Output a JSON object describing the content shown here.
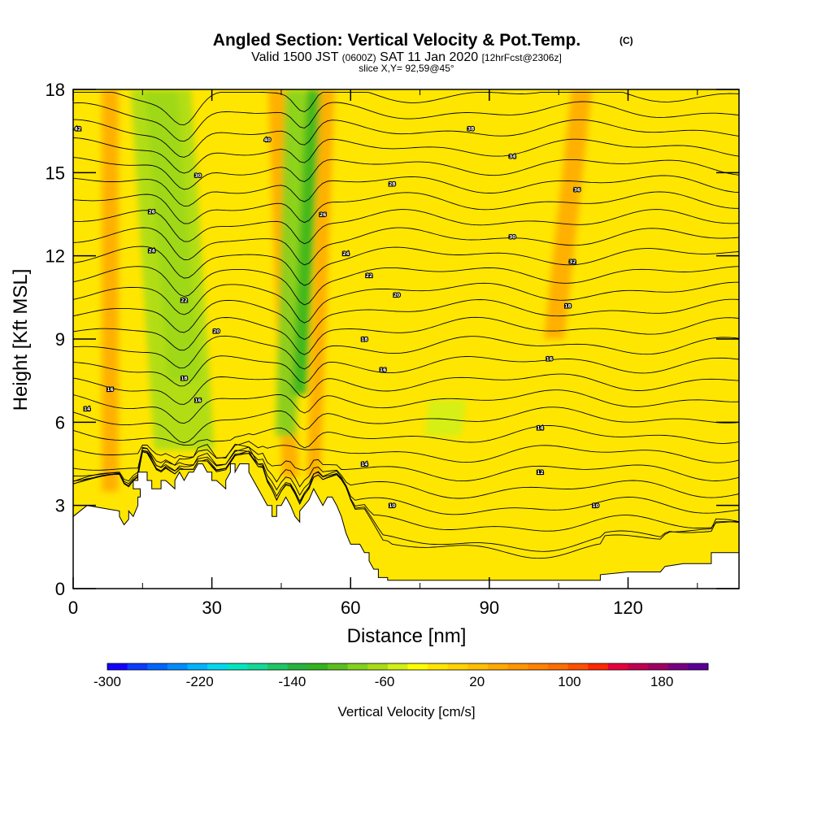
{
  "chart_data": {
    "type": "heatmap",
    "title": "Angled Section: Vertical Velocity & Pot.Temp.",
    "title_tag": "(C)",
    "subtitle_prefix": "Valid 1500 JST",
    "subtitle_small": "(0600Z)",
    "subtitle_main": "SAT 11 Jan 2020",
    "subtitle_fcst": "[12hrFcst@2306z]",
    "slice_info": "slice X,Y= 92,59@45°",
    "xlabel": "Distance [nm]",
    "ylabel": "Height [Kft MSL]",
    "xlim": [
      0,
      144
    ],
    "ylim": [
      0,
      18
    ],
    "x_ticks": [
      "0",
      "30",
      "60",
      "90",
      "120"
    ],
    "x_tick_values": [
      0,
      30,
      60,
      90,
      120
    ],
    "y_ticks": [
      "0",
      "3",
      "6",
      "9",
      "12",
      "15",
      "18"
    ],
    "y_tick_values": [
      0,
      3,
      6,
      9,
      12,
      15,
      18
    ],
    "background_velocity": 20,
    "velocity_bands": [
      {
        "x_top": 8,
        "x_bottom": 8,
        "half_width": 1.8,
        "value": 80,
        "y_from": 3.5,
        "y_to": 18
      },
      {
        "x_top": 19,
        "x_bottom": 24,
        "half_width": 3.5,
        "value": -100,
        "y_from": 7.5,
        "y_to": 18
      },
      {
        "x_top": 19,
        "x_bottom": 24,
        "half_width": 6.5,
        "value": -40,
        "y_from": 5,
        "y_to": 18
      },
      {
        "x_top": 44,
        "x_bottom": 47,
        "half_width": 1.8,
        "value": 80,
        "y_from": 4,
        "y_to": 18
      },
      {
        "x_top": 48,
        "x_bottom": 46,
        "half_width": 2.2,
        "value": -60,
        "y_from": 5.5,
        "y_to": 18
      },
      {
        "x_top": 52,
        "x_bottom": 49,
        "half_width": 1.6,
        "value": -100,
        "y_from": 7,
        "y_to": 18
      },
      {
        "x_top": 55,
        "x_bottom": 52,
        "half_width": 1.5,
        "value": 80,
        "y_from": 4,
        "y_to": 18
      },
      {
        "x_top": 110,
        "x_bottom": 104,
        "half_width": 2.2,
        "value": 90,
        "y_from": 9,
        "y_to": 18
      },
      {
        "x_top": 81,
        "x_bottom": 80,
        "half_width": 4,
        "value": -20,
        "y_from": 5.5,
        "y_to": 6.8
      }
    ],
    "terrain": {
      "x": [
        0,
        3,
        10,
        10,
        11,
        12,
        12,
        13,
        14,
        14,
        14.5,
        14.5,
        13,
        13,
        14,
        14,
        15,
        16,
        16,
        17,
        17,
        18,
        19,
        19,
        20,
        22,
        22,
        23,
        24,
        25,
        26,
        27,
        28,
        29,
        30,
        30,
        31,
        33,
        33,
        34,
        34,
        35,
        35,
        36,
        37,
        38,
        38,
        39,
        41,
        42,
        43,
        43,
        44,
        44,
        45,
        46,
        47,
        48,
        48,
        49,
        49,
        50,
        51,
        52,
        53,
        54,
        54,
        55,
        56,
        57,
        58,
        59,
        60,
        60,
        62,
        63,
        64,
        64,
        65,
        66,
        66,
        67,
        68,
        68,
        69,
        80,
        114,
        114,
        120,
        125,
        127,
        128,
        132,
        138,
        138,
        144,
        144,
        0
      ],
      "y": [
        2.6,
        3.0,
        2.8,
        2.6,
        2.3,
        2.5,
        2.8,
        2.6,
        3.0,
        3.3,
        3.3,
        3.6,
        3.6,
        3.9,
        3.9,
        4.2,
        4.2,
        4.2,
        3.9,
        3.9,
        3.6,
        3.6,
        3.6,
        3.9,
        3.9,
        3.6,
        3.9,
        4.2,
        3.9,
        4.2,
        4.2,
        4.5,
        4.5,
        4.2,
        4.2,
        3.9,
        3.9,
        3.6,
        3.9,
        4.2,
        4.5,
        4.5,
        4.2,
        4.5,
        4.5,
        4.5,
        4.2,
        3.9,
        3.3,
        3.0,
        3.0,
        2.6,
        2.6,
        3.0,
        3.0,
        3.3,
        3.0,
        2.6,
        2.6,
        2.4,
        2.8,
        3.0,
        3.2,
        3.6,
        3.3,
        3.0,
        3.0,
        3.3,
        3.3,
        3.0,
        2.6,
        2.0,
        1.6,
        1.6,
        1.6,
        1.3,
        1.3,
        1.0,
        0.7,
        0.7,
        0.4,
        0.4,
        0.4,
        0.3,
        0.3,
        0.3,
        0.3,
        0.5,
        0.6,
        0.6,
        0.6,
        0.8,
        0.9,
        0.9,
        1.3,
        1.3,
        0,
        0
      ]
    },
    "theta_contour_count": 27,
    "theta_labels": [
      {
        "text": "10",
        "x": 69,
        "y": 3.0
      },
      {
        "text": "14",
        "x": 63,
        "y": 4.5
      },
      {
        "text": "12",
        "x": 101,
        "y": 4.2
      },
      {
        "text": "10",
        "x": 113,
        "y": 3.0
      },
      {
        "text": "14",
        "x": 101,
        "y": 5.8
      },
      {
        "text": "16",
        "x": 67,
        "y": 7.9
      },
      {
        "text": "18",
        "x": 63,
        "y": 9.0
      },
      {
        "text": "16",
        "x": 103,
        "y": 8.3
      },
      {
        "text": "18",
        "x": 107,
        "y": 10.2
      },
      {
        "text": "20",
        "x": 70,
        "y": 10.6
      },
      {
        "text": "22",
        "x": 64,
        "y": 11.3
      },
      {
        "text": "24",
        "x": 59,
        "y": 12.1
      },
      {
        "text": "26",
        "x": 54,
        "y": 13.5
      },
      {
        "text": "28",
        "x": 69,
        "y": 14.6
      },
      {
        "text": "30",
        "x": 95,
        "y": 12.7
      },
      {
        "text": "32",
        "x": 108,
        "y": 11.8
      },
      {
        "text": "36",
        "x": 109,
        "y": 14.4
      },
      {
        "text": "34",
        "x": 95,
        "y": 15.6
      },
      {
        "text": "38",
        "x": 86,
        "y": 16.6
      },
      {
        "text": "40",
        "x": 42,
        "y": 16.2
      },
      {
        "text": "30",
        "x": 27,
        "y": 14.9
      },
      {
        "text": "26",
        "x": 17,
        "y": 13.6
      },
      {
        "text": "24",
        "x": 17,
        "y": 12.2
      },
      {
        "text": "22",
        "x": 24,
        "y": 10.4
      },
      {
        "text": "20",
        "x": 31,
        "y": 9.3
      },
      {
        "text": "18",
        "x": 24,
        "y": 7.6
      },
      {
        "text": "16",
        "x": 27,
        "y": 6.8
      },
      {
        "text": "14",
        "x": 3,
        "y": 6.5
      },
      {
        "text": "16",
        "x": 8,
        "y": 7.2
      },
      {
        "text": "42",
        "x": 1,
        "y": 16.6
      }
    ],
    "colorbar": {
      "label": "Vertical Velocity [cm/s]",
      "tick_labels": [
        "-300",
        "-220",
        "-140",
        "-60",
        "20",
        "100",
        "180"
      ],
      "tick_values": [
        -300,
        -220,
        -140,
        -60,
        20,
        100,
        180
      ],
      "min": -300,
      "max": 220,
      "step": 20,
      "colors": [
        "#1400ff",
        "#0a3cff",
        "#0066ff",
        "#008cff",
        "#00b4ff",
        "#00d8f0",
        "#00e6c0",
        "#14d896",
        "#1ec864",
        "#28b43c",
        "#32b41e",
        "#5abe1e",
        "#82d21e",
        "#aadc14",
        "#d2f014",
        "#ffff00",
        "#ffe600",
        "#ffd200",
        "#ffbe00",
        "#ffaa00",
        "#ff9600",
        "#ff8200",
        "#ff6e00",
        "#ff5000",
        "#ff2800",
        "#e6003c",
        "#be0050",
        "#a00064",
        "#780082",
        "#5a0096"
      ]
    }
  }
}
